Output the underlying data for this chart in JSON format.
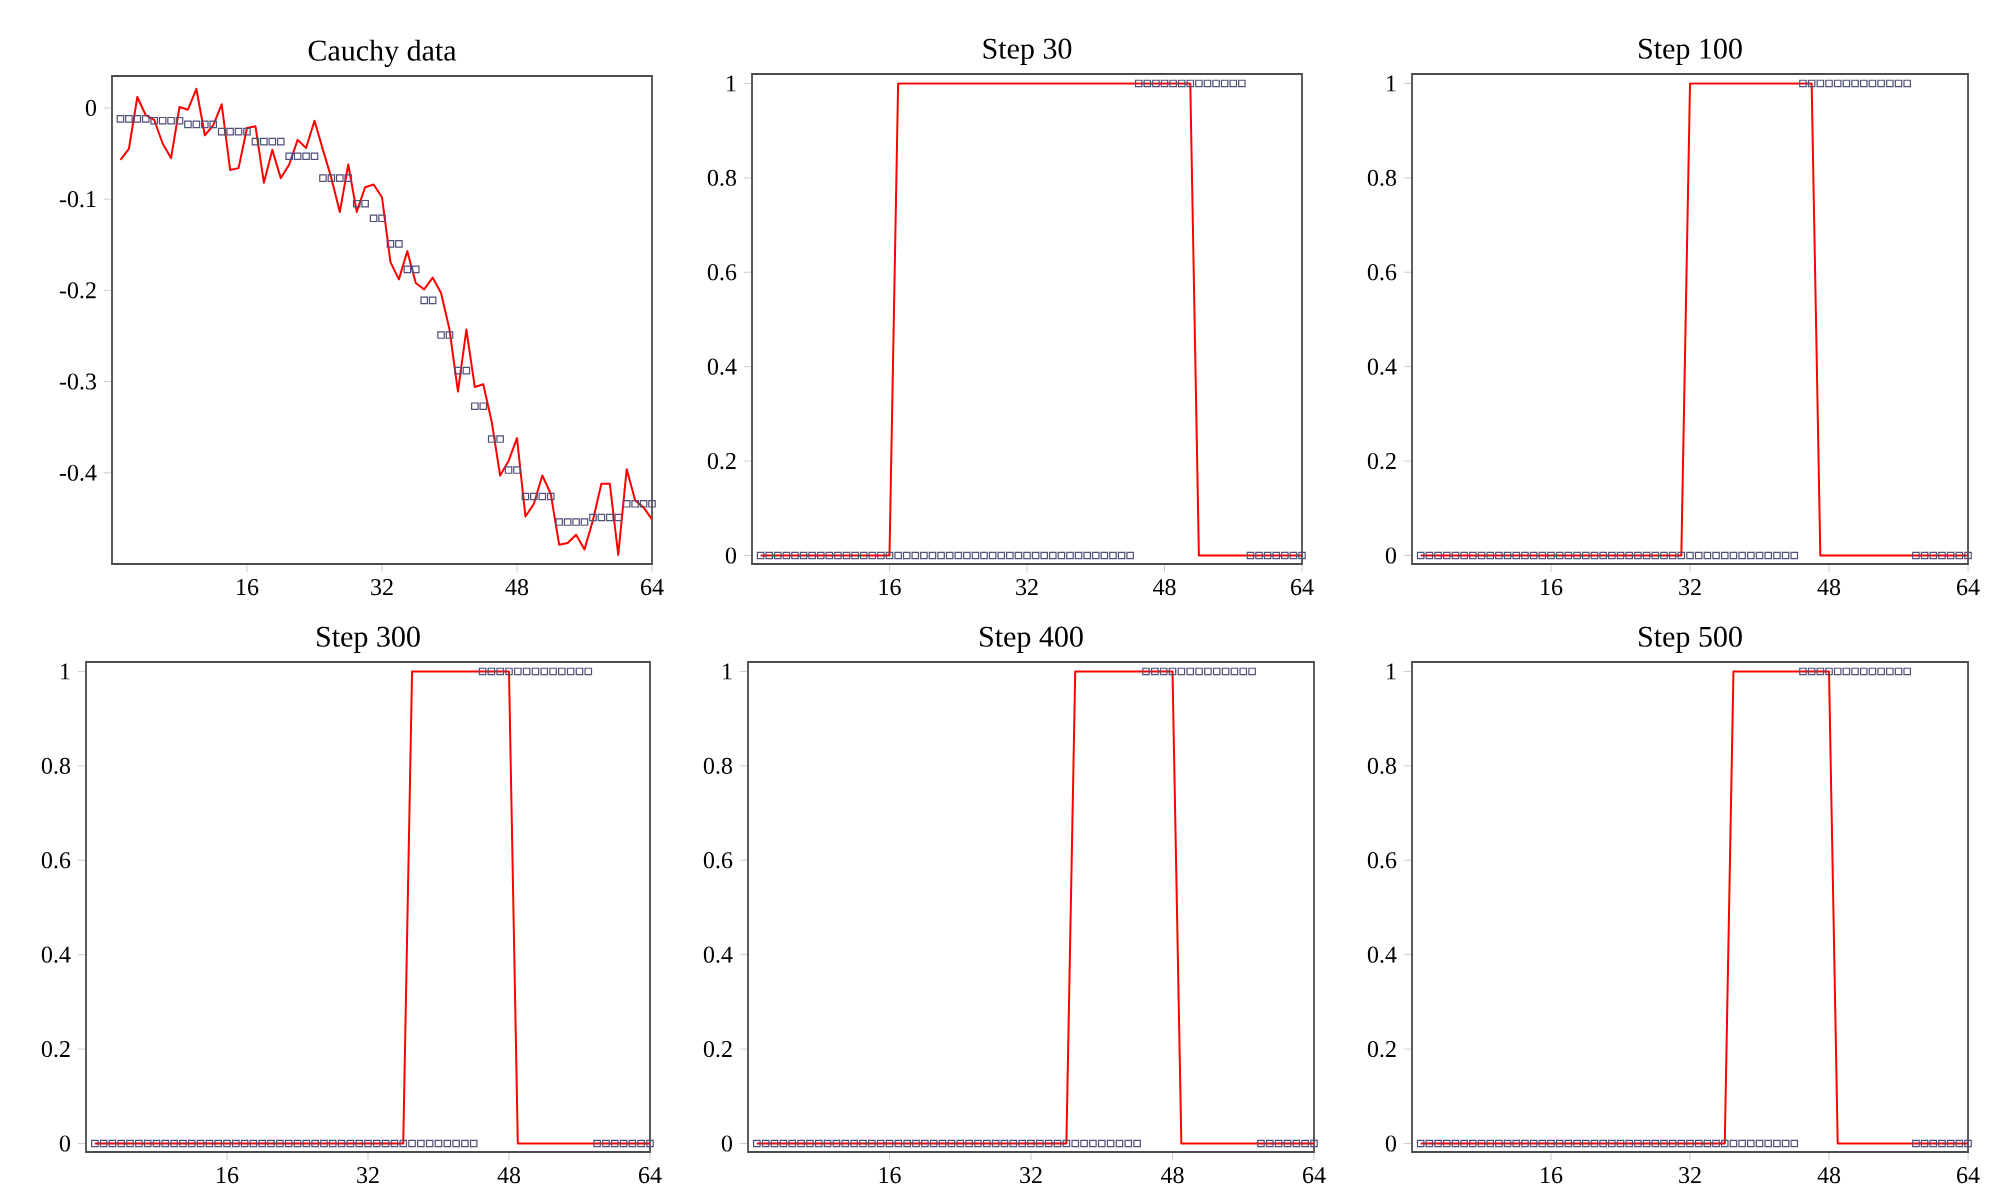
{
  "chart_data": [
    {
      "type": "line",
      "title": "Cauchy data",
      "x": [
        1,
        2,
        3,
        4,
        5,
        6,
        7,
        8,
        9,
        10,
        11,
        12,
        13,
        14,
        15,
        16,
        17,
        18,
        19,
        20,
        21,
        22,
        23,
        24,
        25,
        26,
        27,
        28,
        29,
        30,
        31,
        32,
        33,
        34,
        35,
        36,
        37,
        38,
        39,
        40,
        41,
        42,
        43,
        44,
        45,
        46,
        47,
        48,
        49,
        50,
        51,
        52,
        53,
        54,
        55,
        56,
        57,
        58,
        59,
        60,
        61,
        62,
        63,
        64
      ],
      "xlim": [
        0,
        64
      ],
      "xticks": [
        16,
        32,
        48,
        64
      ],
      "ylim": [
        -0.5,
        0.035
      ],
      "yticks": [
        0,
        -0.1,
        -0.2,
        -0.3,
        -0.4
      ],
      "series": [
        {
          "type": "line",
          "color": "#ff0000",
          "marker": "none",
          "values": [
            -0.057,
            -0.045,
            0.012,
            -0.008,
            -0.013,
            -0.039,
            -0.055,
            0.001,
            -0.002,
            0.021,
            -0.03,
            -0.019,
            0.004,
            -0.068,
            -0.066,
            -0.022,
            -0.02,
            -0.082,
            -0.046,
            -0.077,
            -0.062,
            -0.035,
            -0.044,
            -0.014,
            -0.046,
            -0.077,
            -0.114,
            -0.062,
            -0.114,
            -0.087,
            -0.084,
            -0.098,
            -0.169,
            -0.188,
            -0.157,
            -0.192,
            -0.199,
            -0.186,
            -0.203,
            -0.243,
            -0.311,
            -0.243,
            -0.306,
            -0.303,
            -0.344,
            -0.403,
            -0.387,
            -0.362,
            -0.448,
            -0.434,
            -0.403,
            -0.423,
            -0.479,
            -0.477,
            -0.468,
            -0.484,
            -0.452,
            -0.412,
            -0.412,
            -0.49,
            -0.396,
            -0.43,
            -0.438,
            -0.451
          ]
        },
        {
          "type": "scatter",
          "color": "#505078",
          "marker": "square",
          "values": [
            -0.012,
            -0.012,
            -0.012,
            -0.012,
            -0.014,
            -0.014,
            -0.014,
            -0.014,
            -0.018,
            -0.018,
            -0.018,
            -0.018,
            -0.026,
            -0.026,
            -0.026,
            -0.026,
            -0.037,
            -0.037,
            -0.037,
            -0.037,
            -0.053,
            -0.053,
            -0.053,
            -0.053,
            -0.077,
            -0.077,
            -0.077,
            -0.077,
            -0.105,
            -0.105,
            -0.121,
            -0.121,
            -0.149,
            -0.149,
            -0.177,
            -0.177,
            -0.211,
            -0.211,
            -0.249,
            -0.249,
            -0.288,
            -0.288,
            -0.327,
            -0.327,
            -0.363,
            -0.363,
            -0.397,
            -0.397,
            -0.426,
            -0.426,
            -0.426,
            -0.426,
            -0.454,
            -0.454,
            -0.454,
            -0.454,
            -0.449,
            -0.449,
            -0.449,
            -0.449,
            -0.434,
            -0.434,
            -0.434,
            -0.434
          ]
        }
      ]
    },
    {
      "type": "line",
      "title": "Step 30",
      "x": [
        1,
        2,
        3,
        4,
        5,
        6,
        7,
        8,
        9,
        10,
        11,
        12,
        13,
        14,
        15,
        16,
        17,
        18,
        19,
        20,
        21,
        22,
        23,
        24,
        25,
        26,
        27,
        28,
        29,
        30,
        31,
        32,
        33,
        34,
        35,
        36,
        37,
        38,
        39,
        40,
        41,
        42,
        43,
        44,
        45,
        46,
        47,
        48,
        49,
        50,
        51,
        52,
        53,
        54,
        55,
        56,
        57,
        58,
        59,
        60,
        61,
        62,
        63,
        64
      ],
      "xlim": [
        0,
        64
      ],
      "xticks": [
        16,
        32,
        48,
        64
      ],
      "ylim": [
        -0.018,
        1.02
      ],
      "yticks": [
        0,
        0.2,
        0.4,
        0.6,
        0.8,
        1
      ],
      "series": [
        {
          "type": "line",
          "color": "#ff0000",
          "marker": "none",
          "x": [
            1,
            16,
            17,
            51,
            52,
            64
          ],
          "values": [
            0,
            0,
            1,
            1,
            0,
            0
          ]
        },
        {
          "type": "scatter",
          "color": "#505078",
          "marker": "square",
          "values": [
            0,
            0,
            0,
            0,
            0,
            0,
            0,
            0,
            0,
            0,
            0,
            0,
            0,
            0,
            0,
            0,
            0,
            0,
            0,
            0,
            0,
            0,
            0,
            0,
            0,
            0,
            0,
            0,
            0,
            0,
            0,
            0,
            0,
            0,
            0,
            0,
            0,
            0,
            0,
            0,
            0,
            0,
            0,
            0,
            1,
            1,
            1,
            1,
            1,
            1,
            1,
            1,
            1,
            1,
            1,
            1,
            1,
            0,
            0,
            0,
            0,
            0,
            0,
            0
          ]
        }
      ]
    },
    {
      "type": "line",
      "title": "Step 100",
      "x": [
        1,
        2,
        3,
        4,
        5,
        6,
        7,
        8,
        9,
        10,
        11,
        12,
        13,
        14,
        15,
        16,
        17,
        18,
        19,
        20,
        21,
        22,
        23,
        24,
        25,
        26,
        27,
        28,
        29,
        30,
        31,
        32,
        33,
        34,
        35,
        36,
        37,
        38,
        39,
        40,
        41,
        42,
        43,
        44,
        45,
        46,
        47,
        48,
        49,
        50,
        51,
        52,
        53,
        54,
        55,
        56,
        57,
        58,
        59,
        60,
        61,
        62,
        63,
        64
      ],
      "xlim": [
        0,
        64
      ],
      "xticks": [
        16,
        32,
        48,
        64
      ],
      "ylim": [
        -0.018,
        1.02
      ],
      "yticks": [
        0,
        0.2,
        0.4,
        0.6,
        0.8,
        1
      ],
      "series": [
        {
          "type": "line",
          "color": "#ff0000",
          "marker": "none",
          "x": [
            1,
            31,
            32,
            46,
            47,
            64
          ],
          "values": [
            0,
            0,
            1,
            1,
            0,
            0
          ]
        },
        {
          "type": "scatter",
          "color": "#505078",
          "marker": "square",
          "values": [
            0,
            0,
            0,
            0,
            0,
            0,
            0,
            0,
            0,
            0,
            0,
            0,
            0,
            0,
            0,
            0,
            0,
            0,
            0,
            0,
            0,
            0,
            0,
            0,
            0,
            0,
            0,
            0,
            0,
            0,
            0,
            0,
            0,
            0,
            0,
            0,
            0,
            0,
            0,
            0,
            0,
            0,
            0,
            0,
            1,
            1,
            1,
            1,
            1,
            1,
            1,
            1,
            1,
            1,
            1,
            1,
            1,
            0,
            0,
            0,
            0,
            0,
            0,
            0
          ]
        }
      ]
    },
    {
      "type": "line",
      "title": "Step 300",
      "x": [
        1,
        2,
        3,
        4,
        5,
        6,
        7,
        8,
        9,
        10,
        11,
        12,
        13,
        14,
        15,
        16,
        17,
        18,
        19,
        20,
        21,
        22,
        23,
        24,
        25,
        26,
        27,
        28,
        29,
        30,
        31,
        32,
        33,
        34,
        35,
        36,
        37,
        38,
        39,
        40,
        41,
        42,
        43,
        44,
        45,
        46,
        47,
        48,
        49,
        50,
        51,
        52,
        53,
        54,
        55,
        56,
        57,
        58,
        59,
        60,
        61,
        62,
        63,
        64
      ],
      "xlim": [
        0,
        64
      ],
      "xticks": [
        16,
        32,
        48,
        64
      ],
      "ylim": [
        -0.018,
        1.02
      ],
      "yticks": [
        0,
        0.2,
        0.4,
        0.6,
        0.8,
        1
      ],
      "series": [
        {
          "type": "line",
          "color": "#ff0000",
          "marker": "none",
          "x": [
            1,
            36,
            37,
            48,
            49,
            64
          ],
          "values": [
            0,
            0,
            1,
            1,
            0,
            0
          ]
        },
        {
          "type": "scatter",
          "color": "#505078",
          "marker": "square",
          "values": [
            0,
            0,
            0,
            0,
            0,
            0,
            0,
            0,
            0,
            0,
            0,
            0,
            0,
            0,
            0,
            0,
            0,
            0,
            0,
            0,
            0,
            0,
            0,
            0,
            0,
            0,
            0,
            0,
            0,
            0,
            0,
            0,
            0,
            0,
            0,
            0,
            0,
            0,
            0,
            0,
            0,
            0,
            0,
            0,
            1,
            1,
            1,
            1,
            1,
            1,
            1,
            1,
            1,
            1,
            1,
            1,
            1,
            0,
            0,
            0,
            0,
            0,
            0,
            0
          ]
        }
      ]
    },
    {
      "type": "line",
      "title": "Step 400",
      "x": [
        1,
        2,
        3,
        4,
        5,
        6,
        7,
        8,
        9,
        10,
        11,
        12,
        13,
        14,
        15,
        16,
        17,
        18,
        19,
        20,
        21,
        22,
        23,
        24,
        25,
        26,
        27,
        28,
        29,
        30,
        31,
        32,
        33,
        34,
        35,
        36,
        37,
        38,
        39,
        40,
        41,
        42,
        43,
        44,
        45,
        46,
        47,
        48,
        49,
        50,
        51,
        52,
        53,
        54,
        55,
        56,
        57,
        58,
        59,
        60,
        61,
        62,
        63,
        64
      ],
      "xlim": [
        0,
        64
      ],
      "xticks": [
        16,
        32,
        48,
        64
      ],
      "ylim": [
        -0.018,
        1.02
      ],
      "yticks": [
        0,
        0.2,
        0.4,
        0.6,
        0.8,
        1
      ],
      "series": [
        {
          "type": "line",
          "color": "#ff0000",
          "marker": "none",
          "x": [
            1,
            36,
            37,
            48,
            49,
            64
          ],
          "values": [
            0,
            0,
            1,
            1,
            0,
            0
          ]
        },
        {
          "type": "scatter",
          "color": "#505078",
          "marker": "square",
          "values": [
            0,
            0,
            0,
            0,
            0,
            0,
            0,
            0,
            0,
            0,
            0,
            0,
            0,
            0,
            0,
            0,
            0,
            0,
            0,
            0,
            0,
            0,
            0,
            0,
            0,
            0,
            0,
            0,
            0,
            0,
            0,
            0,
            0,
            0,
            0,
            0,
            0,
            0,
            0,
            0,
            0,
            0,
            0,
            0,
            1,
            1,
            1,
            1,
            1,
            1,
            1,
            1,
            1,
            1,
            1,
            1,
            1,
            0,
            0,
            0,
            0,
            0,
            0,
            0
          ]
        }
      ]
    },
    {
      "type": "line",
      "title": "Step 500",
      "x": [
        1,
        2,
        3,
        4,
        5,
        6,
        7,
        8,
        9,
        10,
        11,
        12,
        13,
        14,
        15,
        16,
        17,
        18,
        19,
        20,
        21,
        22,
        23,
        24,
        25,
        26,
        27,
        28,
        29,
        30,
        31,
        32,
        33,
        34,
        35,
        36,
        37,
        38,
        39,
        40,
        41,
        42,
        43,
        44,
        45,
        46,
        47,
        48,
        49,
        50,
        51,
        52,
        53,
        54,
        55,
        56,
        57,
        58,
        59,
        60,
        61,
        62,
        63,
        64
      ],
      "xlim": [
        0,
        64
      ],
      "xticks": [
        16,
        32,
        48,
        64
      ],
      "ylim": [
        -0.018,
        1.02
      ],
      "yticks": [
        0,
        0.2,
        0.4,
        0.6,
        0.8,
        1
      ],
      "series": [
        {
          "type": "line",
          "color": "#ff0000",
          "marker": "none",
          "x": [
            1,
            36,
            37,
            48,
            49,
            64
          ],
          "values": [
            0,
            0,
            1,
            1,
            0,
            0
          ]
        },
        {
          "type": "scatter",
          "color": "#505078",
          "marker": "square",
          "values": [
            0,
            0,
            0,
            0,
            0,
            0,
            0,
            0,
            0,
            0,
            0,
            0,
            0,
            0,
            0,
            0,
            0,
            0,
            0,
            0,
            0,
            0,
            0,
            0,
            0,
            0,
            0,
            0,
            0,
            0,
            0,
            0,
            0,
            0,
            0,
            0,
            0,
            0,
            0,
            0,
            0,
            0,
            0,
            0,
            1,
            1,
            1,
            1,
            1,
            1,
            1,
            1,
            1,
            1,
            1,
            1,
            1,
            0,
            0,
            0,
            0,
            0,
            0,
            0
          ]
        }
      ]
    }
  ]
}
